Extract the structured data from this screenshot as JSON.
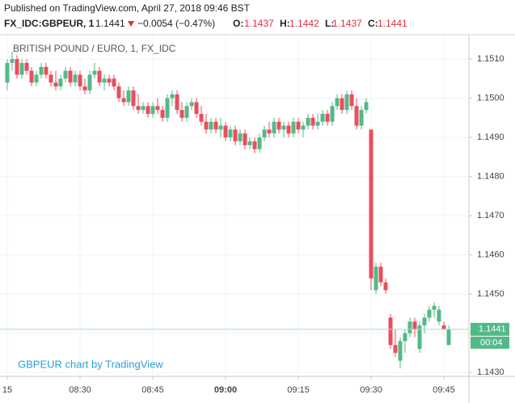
{
  "header": {
    "published": "Published on TradingView.com, April 27, 2018 09:46 BST",
    "symbol": "FX_IDC:GBPEUR, 1",
    "last": "1.1441",
    "change": "−0.0054 (−0.47%)",
    "open_label": "O:",
    "open": "1.1437",
    "high_label": "H:",
    "high": "1.1442",
    "low_label": "L:",
    "low": "1.1437",
    "close_label": "C:",
    "close": "1.1441"
  },
  "chart_data": {
    "type": "candlestick",
    "title": "BRITISH POUND / EURO, 1, FX_IDC",
    "watermark": "GBPEUR chart by TradingView",
    "up_color": "#53b987",
    "down_color": "#eb4d5c",
    "ylim": [
      1.1429,
      1.1516
    ],
    "yticks": [
      {
        "value": 1.151,
        "label": "1.1510"
      },
      {
        "value": 1.15,
        "label": "1.1500"
      },
      {
        "value": 1.149,
        "label": "1.1490"
      },
      {
        "value": 1.148,
        "label": "1.1480"
      },
      {
        "value": 1.147,
        "label": "1.1470"
      },
      {
        "value": 1.146,
        "label": "1.1460"
      },
      {
        "value": 1.145,
        "label": "1.1450"
      },
      {
        "value": 1.144,
        "label": "1.1440"
      },
      {
        "value": 1.143,
        "label": "1.1430"
      }
    ],
    "xticks": [
      {
        "value": "08:15",
        "label": "15"
      },
      "08:30",
      "08:45",
      "09:00",
      "09:15",
      "09:30",
      "09:45"
    ],
    "last_price": {
      "value": 1.1441,
      "label": "1.1441"
    },
    "countdown": "00:04",
    "candles": [
      {
        "time": "08:15",
        "open": 1.1504,
        "high": 1.151,
        "low": 1.1502,
        "close": 1.1509
      },
      {
        "time": "08:16",
        "open": 1.1509,
        "high": 1.1512,
        "low": 1.1507,
        "close": 1.151
      },
      {
        "time": "08:17",
        "open": 1.151,
        "high": 1.1511,
        "low": 1.1505,
        "close": 1.1506
      },
      {
        "time": "08:18",
        "open": 1.1506,
        "high": 1.151,
        "low": 1.1505,
        "close": 1.1509
      },
      {
        "time": "08:19",
        "open": 1.1509,
        "high": 1.151,
        "low": 1.1506,
        "close": 1.1507
      },
      {
        "time": "08:20",
        "open": 1.1507,
        "high": 1.1508,
        "low": 1.1503,
        "close": 1.1504
      },
      {
        "time": "08:21",
        "open": 1.1504,
        "high": 1.1507,
        "low": 1.1503,
        "close": 1.1506
      },
      {
        "time": "08:22",
        "open": 1.1506,
        "high": 1.1509,
        "low": 1.1505,
        "close": 1.1508
      },
      {
        "time": "08:23",
        "open": 1.1508,
        "high": 1.1509,
        "low": 1.1505,
        "close": 1.1506
      },
      {
        "time": "08:24",
        "open": 1.1506,
        "high": 1.1507,
        "low": 1.1503,
        "close": 1.1504
      },
      {
        "time": "08:25",
        "open": 1.1504,
        "high": 1.1507,
        "low": 1.1502,
        "close": 1.1503
      },
      {
        "time": "08:26",
        "open": 1.1503,
        "high": 1.1506,
        "low": 1.1502,
        "close": 1.1505
      },
      {
        "time": "08:27",
        "open": 1.1505,
        "high": 1.1508,
        "low": 1.1504,
        "close": 1.1507
      },
      {
        "time": "08:28",
        "open": 1.1507,
        "high": 1.1508,
        "low": 1.1503,
        "close": 1.1504
      },
      {
        "time": "08:29",
        "open": 1.1504,
        "high": 1.1507,
        "low": 1.1503,
        "close": 1.1506
      },
      {
        "time": "08:30",
        "open": 1.1506,
        "high": 1.1507,
        "low": 1.1502,
        "close": 1.1503
      },
      {
        "time": "08:31",
        "open": 1.1503,
        "high": 1.1505,
        "low": 1.1501,
        "close": 1.1502
      },
      {
        "time": "08:32",
        "open": 1.1502,
        "high": 1.1507,
        "low": 1.1501,
        "close": 1.1506
      },
      {
        "time": "08:33",
        "open": 1.1506,
        "high": 1.1509,
        "low": 1.1505,
        "close": 1.1507
      },
      {
        "time": "08:34",
        "open": 1.1507,
        "high": 1.1508,
        "low": 1.1503,
        "close": 1.1504
      },
      {
        "time": "08:35",
        "open": 1.1504,
        "high": 1.1506,
        "low": 1.1502,
        "close": 1.1505
      },
      {
        "time": "08:36",
        "open": 1.1505,
        "high": 1.1506,
        "low": 1.1503,
        "close": 1.1504
      },
      {
        "time": "08:37",
        "open": 1.1505,
        "high": 1.1506,
        "low": 1.1502,
        "close": 1.1503
      },
      {
        "time": "08:38",
        "open": 1.1503,
        "high": 1.1504,
        "low": 1.1499,
        "close": 1.15
      },
      {
        "time": "08:39",
        "open": 1.15,
        "high": 1.1502,
        "low": 1.1498,
        "close": 1.1499
      },
      {
        "time": "08:40",
        "open": 1.1499,
        "high": 1.1503,
        "low": 1.1498,
        "close": 1.1502
      },
      {
        "time": "08:41",
        "open": 1.1502,
        "high": 1.1503,
        "low": 1.1497,
        "close": 1.1498
      },
      {
        "time": "08:42",
        "open": 1.1498,
        "high": 1.1501,
        "low": 1.1496,
        "close": 1.1497
      },
      {
        "time": "08:43",
        "open": 1.1497,
        "high": 1.1499,
        "low": 1.1496,
        "close": 1.1498
      },
      {
        "time": "08:44",
        "open": 1.1498,
        "high": 1.1499,
        "low": 1.1495,
        "close": 1.1496
      },
      {
        "time": "08:45",
        "open": 1.1496,
        "high": 1.1499,
        "low": 1.1495,
        "close": 1.1498
      },
      {
        "time": "08:46",
        "open": 1.1498,
        "high": 1.15,
        "low": 1.1496,
        "close": 1.1497
      },
      {
        "time": "08:47",
        "open": 1.1497,
        "high": 1.1498,
        "low": 1.1494,
        "close": 1.1495
      },
      {
        "time": "08:48",
        "open": 1.1495,
        "high": 1.1501,
        "low": 1.1494,
        "close": 1.15
      },
      {
        "time": "08:49",
        "open": 1.15,
        "high": 1.1502,
        "low": 1.1498,
        "close": 1.1501
      },
      {
        "time": "08:50",
        "open": 1.1501,
        "high": 1.1502,
        "low": 1.1496,
        "close": 1.1497
      },
      {
        "time": "08:51",
        "open": 1.1497,
        "high": 1.1499,
        "low": 1.1494,
        "close": 1.1495
      },
      {
        "time": "08:52",
        "open": 1.1495,
        "high": 1.1499,
        "low": 1.1494,
        "close": 1.1498
      },
      {
        "time": "08:53",
        "open": 1.1498,
        "high": 1.15,
        "low": 1.1497,
        "close": 1.1499
      },
      {
        "time": "08:54",
        "open": 1.1499,
        "high": 1.15,
        "low": 1.1495,
        "close": 1.1496
      },
      {
        "time": "08:55",
        "open": 1.1496,
        "high": 1.1498,
        "low": 1.1493,
        "close": 1.1494
      },
      {
        "time": "08:56",
        "open": 1.1494,
        "high": 1.1496,
        "low": 1.1491,
        "close": 1.1492
      },
      {
        "time": "08:57",
        "open": 1.1492,
        "high": 1.1495,
        "low": 1.1491,
        "close": 1.1494
      },
      {
        "time": "08:58",
        "open": 1.1494,
        "high": 1.1495,
        "low": 1.1491,
        "close": 1.1492
      },
      {
        "time": "08:59",
        "open": 1.1492,
        "high": 1.1495,
        "low": 1.149,
        "close": 1.1493
      },
      {
        "time": "09:00",
        "open": 1.1493,
        "high": 1.1494,
        "low": 1.1489,
        "close": 1.149
      },
      {
        "time": "09:01",
        "open": 1.149,
        "high": 1.1493,
        "low": 1.1489,
        "close": 1.1492
      },
      {
        "time": "09:02",
        "open": 1.1492,
        "high": 1.1493,
        "low": 1.1488,
        "close": 1.1489
      },
      {
        "time": "09:03",
        "open": 1.1489,
        "high": 1.1492,
        "low": 1.1488,
        "close": 1.1491
      },
      {
        "time": "09:04",
        "open": 1.1491,
        "high": 1.1492,
        "low": 1.1487,
        "close": 1.1488
      },
      {
        "time": "09:05",
        "open": 1.1488,
        "high": 1.149,
        "low": 1.1487,
        "close": 1.1489
      },
      {
        "time": "09:06",
        "open": 1.1489,
        "high": 1.149,
        "low": 1.1486,
        "close": 1.1487
      },
      {
        "time": "09:07",
        "open": 1.1487,
        "high": 1.1491,
        "low": 1.1486,
        "close": 1.149
      },
      {
        "time": "09:08",
        "open": 1.149,
        "high": 1.1493,
        "low": 1.1489,
        "close": 1.1492
      },
      {
        "time": "09:09",
        "open": 1.1492,
        "high": 1.1494,
        "low": 1.149,
        "close": 1.1491
      },
      {
        "time": "09:10",
        "open": 1.1491,
        "high": 1.1495,
        "low": 1.149,
        "close": 1.1494
      },
      {
        "time": "09:11",
        "open": 1.1494,
        "high": 1.1495,
        "low": 1.1491,
        "close": 1.1492
      },
      {
        "time": "09:12",
        "open": 1.1492,
        "high": 1.1494,
        "low": 1.149,
        "close": 1.1493
      },
      {
        "time": "09:13",
        "open": 1.1493,
        "high": 1.1494,
        "low": 1.149,
        "close": 1.1491
      },
      {
        "time": "09:14",
        "open": 1.1491,
        "high": 1.1495,
        "low": 1.149,
        "close": 1.1494
      },
      {
        "time": "09:15",
        "open": 1.1494,
        "high": 1.1495,
        "low": 1.1491,
        "close": 1.1492
      },
      {
        "time": "09:16",
        "open": 1.1492,
        "high": 1.1494,
        "low": 1.149,
        "close": 1.1493
      },
      {
        "time": "09:17",
        "open": 1.1493,
        "high": 1.1496,
        "low": 1.1492,
        "close": 1.1495
      },
      {
        "time": "09:18",
        "open": 1.1495,
        "high": 1.1496,
        "low": 1.1492,
        "close": 1.1493
      },
      {
        "time": "09:19",
        "open": 1.1493,
        "high": 1.1496,
        "low": 1.1492,
        "close": 1.1494
      },
      {
        "time": "09:20",
        "open": 1.1494,
        "high": 1.1497,
        "low": 1.1493,
        "close": 1.1496
      },
      {
        "time": "09:21",
        "open": 1.1496,
        "high": 1.1497,
        "low": 1.1493,
        "close": 1.1494
      },
      {
        "time": "09:22",
        "open": 1.1494,
        "high": 1.1499,
        "low": 1.1493,
        "close": 1.1498
      },
      {
        "time": "09:23",
        "open": 1.1498,
        "high": 1.1501,
        "low": 1.1497,
        "close": 1.15
      },
      {
        "time": "09:24",
        "open": 1.15,
        "high": 1.1501,
        "low": 1.1496,
        "close": 1.1497
      },
      {
        "time": "09:25",
        "open": 1.1497,
        "high": 1.1502,
        "low": 1.1496,
        "close": 1.1501
      },
      {
        "time": "09:26",
        "open": 1.1501,
        "high": 1.1502,
        "low": 1.1497,
        "close": 1.1498
      },
      {
        "time": "09:27",
        "open": 1.1498,
        "high": 1.15,
        "low": 1.1492,
        "close": 1.1493
      },
      {
        "time": "09:28",
        "open": 1.1493,
        "high": 1.1498,
        "low": 1.1492,
        "close": 1.1497
      },
      {
        "time": "09:29",
        "open": 1.1497,
        "high": 1.15,
        "low": 1.1496,
        "close": 1.1499
      },
      {
        "time": "09:30",
        "open": 1.1492,
        "high": 1.1492,
        "low": 1.1451,
        "close": 1.1454
      },
      {
        "time": "09:31",
        "open": 1.1451,
        "high": 1.1458,
        "low": 1.145,
        "close": 1.1457
      },
      {
        "time": "09:32",
        "open": 1.1457,
        "high": 1.1458,
        "low": 1.1452,
        "close": 1.1453
      },
      {
        "time": "09:33",
        "open": 1.1453,
        "high": 1.1454,
        "low": 1.145,
        "close": 1.1451
      },
      {
        "time": "09:34",
        "open": 1.1444,
        "high": 1.1445,
        "low": 1.1436,
        "close": 1.1437
      },
      {
        "time": "09:35",
        "open": 1.1437,
        "high": 1.1441,
        "low": 1.1434,
        "close": 1.1435
      },
      {
        "time": "09:36",
        "open": 1.1433,
        "high": 1.1439,
        "low": 1.1431,
        "close": 1.1438
      },
      {
        "time": "09:37",
        "open": 1.1438,
        "high": 1.1441,
        "low": 1.1435,
        "close": 1.144
      },
      {
        "time": "09:38",
        "open": 1.144,
        "high": 1.1444,
        "low": 1.1439,
        "close": 1.1443
      },
      {
        "time": "09:39",
        "open": 1.1443,
        "high": 1.1444,
        "low": 1.1439,
        "close": 1.1441
      },
      {
        "time": "09:40",
        "open": 1.1436,
        "high": 1.1443,
        "low": 1.1435,
        "close": 1.1442
      },
      {
        "time": "09:41",
        "open": 1.1442,
        "high": 1.1445,
        "low": 1.144,
        "close": 1.1444
      },
      {
        "time": "09:42",
        "open": 1.1444,
        "high": 1.1447,
        "low": 1.1443,
        "close": 1.1446
      },
      {
        "time": "09:43",
        "open": 1.1446,
        "high": 1.1448,
        "low": 1.1444,
        "close": 1.1447
      },
      {
        "time": "09:44",
        "open": 1.1443,
        "high": 1.1447,
        "low": 1.1442,
        "close": 1.1446
      },
      {
        "time": "09:45",
        "open": 1.1442,
        "high": 1.1443,
        "low": 1.1441,
        "close": 1.1441
      },
      {
        "time": "09:46",
        "open": 1.1437,
        "high": 1.1442,
        "low": 1.1437,
        "close": 1.1441
      }
    ]
  }
}
